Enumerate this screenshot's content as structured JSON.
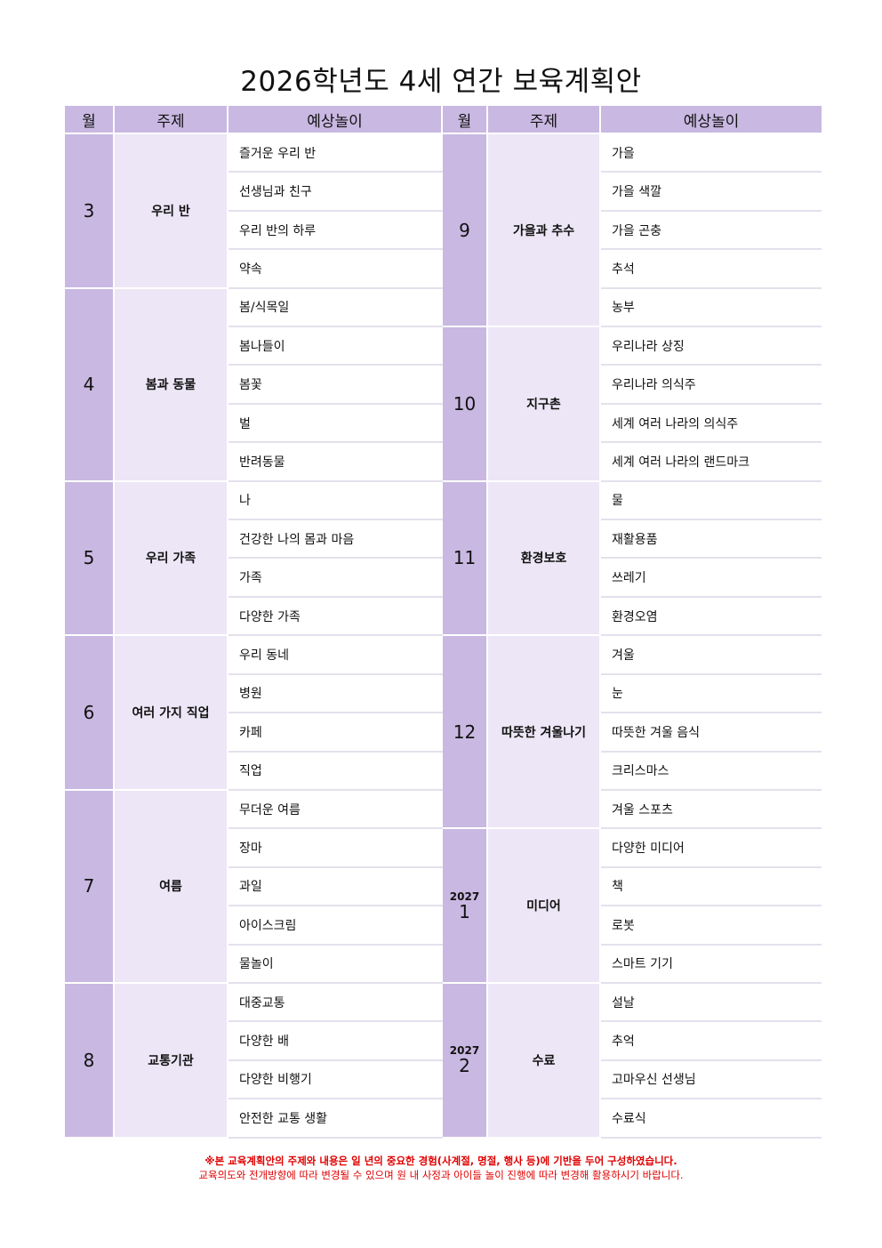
{
  "title": "2026학년도 4세 연간 보육계획안",
  "headers": {
    "month": "월",
    "theme": "주제",
    "play": "예상놀이"
  },
  "left": [
    {
      "month": "3",
      "theme": "우리 반",
      "plays": [
        "즐거운 우리 반",
        "선생님과 친구",
        "우리 반의 하루",
        "약속"
      ]
    },
    {
      "month": "4",
      "theme": "봄과 동물",
      "plays": [
        "봄/식목일",
        "봄나들이",
        "봄꽃",
        "벌",
        "반려동물"
      ]
    },
    {
      "month": "5",
      "theme": "우리 가족",
      "plays": [
        "나",
        "건강한 나의 몸과 마음",
        "가족",
        "다양한 가족"
      ]
    },
    {
      "month": "6",
      "theme": "여러 가지 직업",
      "plays": [
        "우리 동네",
        "병원",
        "카페",
        "직업"
      ]
    },
    {
      "month": "7",
      "theme": "여름",
      "plays": [
        "무더운 여름",
        "장마",
        "과일",
        "아이스크림",
        "물놀이"
      ]
    },
    {
      "month": "8",
      "theme": "교통기관",
      "plays": [
        "대중교통",
        "다양한 배",
        "다양한 비행기",
        "안전한 교통 생활"
      ]
    }
  ],
  "right": [
    {
      "month": "9",
      "theme": "가을과 추수",
      "plays": [
        "가을",
        "가을 색깔",
        "가을 곤충",
        "추석",
        "농부"
      ]
    },
    {
      "month": "10",
      "theme": "지구촌",
      "plays": [
        "우리나라 상징",
        "우리나라 의식주",
        "세계 여러 나라의 의식주",
        "세계 여러 나라의 랜드마크"
      ]
    },
    {
      "month": "11",
      "theme": "환경보호",
      "plays": [
        "물",
        "재활용품",
        "쓰레기",
        "환경오염"
      ]
    },
    {
      "month": "12",
      "theme": "따뜻한 겨울나기",
      "plays": [
        "겨울",
        "눈",
        "따뜻한 겨울 음식",
        "크리스마스",
        "겨울 스포츠"
      ]
    },
    {
      "year": "2027",
      "month": "1",
      "theme": "미디어",
      "plays": [
        "다양한 미디어",
        "책",
        "로봇",
        "스마트 기기"
      ]
    },
    {
      "year": "2027",
      "month": "2",
      "theme": "수료",
      "plays": [
        "설날",
        "추억",
        "고마우신 선생님",
        "수료식"
      ]
    }
  ],
  "notes": {
    "line1": "※본 교육계획안의 주제와 내용은 일 년의 중요한 경험(사계절, 명절, 행사 등)에 기반을 두어 구성하였습니다.",
    "line2": "교육의도와 전개방향에 따라 변경될 수 있으며 원 내 사정과 아이들 놀이 진행에 따라 변경해 활용하시기 바랍니다."
  },
  "colors": {
    "header": "#c9b8e2",
    "month": "#c9b8e2",
    "theme": "#ece6f6",
    "note": "#e00000"
  }
}
